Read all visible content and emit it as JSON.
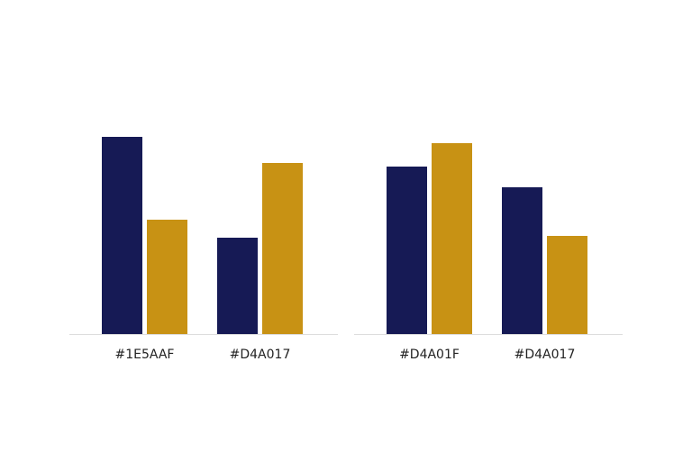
{
  "chart_data": [
    {
      "type": "bar",
      "categories": [
        "#1E5AAF",
        "#D4A017"
      ],
      "series": [
        {
          "color": "#161a55",
          "values": [
            219,
            107
          ]
        },
        {
          "color": "#c89214",
          "values": [
            127,
            190
          ]
        }
      ]
    },
    {
      "type": "bar",
      "categories": [
        "#D4A01F",
        "#D4A017"
      ],
      "series": [
        {
          "color": "#161a55",
          "values": [
            186,
            163
          ]
        },
        {
          "color": "#c89214",
          "values": [
            212,
            109
          ]
        }
      ]
    }
  ]
}
